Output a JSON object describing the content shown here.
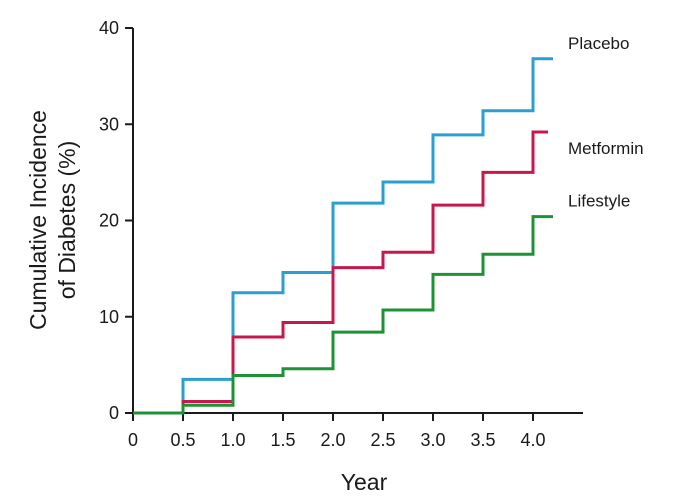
{
  "chart_data": {
    "type": "line",
    "step": true,
    "title": "",
    "xlabel": "Year",
    "ylabel": "Cumulative Incidence of Diabetes (%)",
    "ylabel_lines": [
      "Cumulative Incidence",
      "of Diabetes (%)"
    ],
    "xlim": [
      0,
      4.5
    ],
    "ylim": [
      0,
      40
    ],
    "xticks": [
      0,
      0.5,
      1.0,
      1.5,
      2.0,
      2.5,
      3.0,
      3.5,
      4.0
    ],
    "xtick_labels": [
      "0",
      "0.5",
      "1.0",
      "1.5",
      "2.0",
      "2.5",
      "3.0",
      "3.5",
      "4.0"
    ],
    "yticks": [
      0,
      10,
      20,
      30,
      40
    ],
    "ytick_labels": [
      "0",
      "10",
      "20",
      "30",
      "40"
    ],
    "grid": false,
    "legend": "inline labels at right end of each series",
    "series": [
      {
        "name": "Placebo",
        "color": "#2a9fd0",
        "x": [
          0,
          0.5,
          1.0,
          1.5,
          2.0,
          2.5,
          3.0,
          3.5,
          4.0,
          4.2
        ],
        "values": [
          0,
          3.5,
          12.5,
          14.6,
          21.8,
          24.0,
          28.9,
          31.4,
          36.8,
          36.8
        ]
      },
      {
        "name": "Metformin",
        "color": "#c8174c",
        "x": [
          0,
          0.5,
          1.0,
          1.5,
          2.0,
          2.5,
          3.0,
          3.5,
          4.0,
          4.15
        ],
        "values": [
          0,
          1.2,
          7.9,
          9.4,
          15.1,
          16.7,
          21.6,
          25.0,
          29.2,
          29.2
        ]
      },
      {
        "name": "Lifestyle",
        "color": "#1f9236",
        "x": [
          0,
          0.5,
          1.0,
          1.5,
          2.0,
          2.5,
          3.0,
          3.5,
          4.0,
          4.2
        ],
        "values": [
          0,
          0.8,
          3.9,
          4.6,
          8.4,
          10.7,
          14.4,
          16.5,
          20.4,
          20.4
        ]
      }
    ]
  }
}
